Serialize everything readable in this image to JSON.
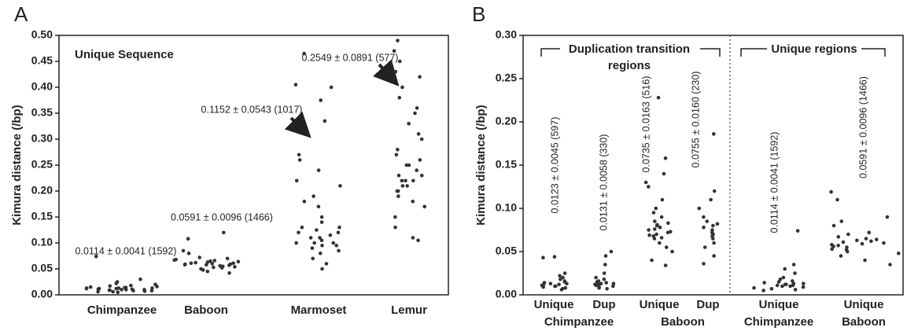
{
  "chart_data": [
    {
      "type": "strip",
      "panel_label": "A",
      "title": "Unique Sequence",
      "y_label": "Kimura distance (/bp)",
      "ylim": [
        0,
        0.5
      ],
      "yticks": [
        {
          "value": 0,
          "label": "0.00"
        },
        {
          "value": 0.05,
          "label": "0.05"
        },
        {
          "value": 0.1,
          "label": "0.10"
        },
        {
          "value": 0.15,
          "label": "0.15"
        },
        {
          "value": 0.2,
          "label": "0.20"
        },
        {
          "value": 0.25,
          "label": "0.25"
        },
        {
          "value": 0.3,
          "label": "0.30"
        },
        {
          "value": 0.35,
          "label": "0.35"
        },
        {
          "value": 0.4,
          "label": "0.40"
        },
        {
          "value": 0.45,
          "label": "0.45"
        },
        {
          "value": 0.5,
          "label": "0.50"
        }
      ],
      "categories": [
        "Chimpanzee",
        "Baboon",
        "Marmoset",
        "Lemur"
      ],
      "color": "#333333",
      "values": [
        [
          0.012,
          0.008,
          0.015,
          0.01,
          0.006,
          0.013,
          0.018,
          0.011,
          0.009,
          0.014,
          0.02,
          0.007,
          0.012,
          0.016,
          0.01,
          0.005,
          0.013,
          0.025,
          0.011,
          0.009,
          0.03,
          0.014,
          0.008,
          0.012,
          0.074,
          0.017,
          0.01,
          0.013,
          0.006,
          0.022
        ],
        [
          0.059,
          0.052,
          0.065,
          0.048,
          0.061,
          0.07,
          0.055,
          0.058,
          0.063,
          0.045,
          0.067,
          0.06,
          0.053,
          0.072,
          0.057,
          0.062,
          0.05,
          0.08,
          0.064,
          0.056,
          0.059,
          0.042,
          0.068,
          0.066,
          0.054,
          0.108,
          0.12,
          0.085,
          0.061,
          0.058
        ],
        [
          0.1,
          0.12,
          0.09,
          0.11,
          0.13,
          0.08,
          0.15,
          0.105,
          0.095,
          0.14,
          0.07,
          0.12,
          0.1,
          0.18,
          0.115,
          0.06,
          0.21,
          0.125,
          0.085,
          0.24,
          0.11,
          0.17,
          0.26,
          0.27,
          0.1,
          0.095,
          0.05,
          0.13,
          0.375,
          0.4,
          0.405,
          0.335,
          0.22,
          0.19,
          0.465
        ],
        [
          0.22,
          0.25,
          0.21,
          0.3,
          0.18,
          0.23,
          0.35,
          0.2,
          0.26,
          0.15,
          0.4,
          0.24,
          0.22,
          0.28,
          0.13,
          0.45,
          0.33,
          0.21,
          0.19,
          0.47,
          0.49,
          0.11,
          0.105,
          0.38,
          0.23,
          0.27,
          0.17,
          0.43,
          0.31,
          0.22,
          0.36,
          0.42,
          0.25,
          0.2
        ]
      ],
      "annotations": [
        "0.0114 ± 0.0041 (1592)",
        "0.0591 ± 0.0096 (1466)",
        "0.1152 ± 0.0543 (1017)",
        "0.2549 ± 0.0891 (577)"
      ]
    },
    {
      "type": "strip",
      "panel_label": "B",
      "y_label": "Kimura distance (/bp)",
      "ylim": [
        0,
        0.3
      ],
      "yticks": [
        {
          "value": 0,
          "label": "0.00"
        },
        {
          "value": 0.05,
          "label": "0.05"
        },
        {
          "value": 0.1,
          "label": "0.10"
        },
        {
          "value": 0.15,
          "label": "0.15"
        },
        {
          "value": 0.2,
          "label": "0.20"
        },
        {
          "value": 0.25,
          "label": "0.25"
        },
        {
          "value": 0.3,
          "label": "0.30"
        }
      ],
      "categories": [
        "Unique",
        "Dup",
        "Unique",
        "Dup",
        "Unique",
        "Unique"
      ],
      "groups": [
        "Chimpanzee",
        "Baboon",
        "Chimpanzee",
        "Baboon"
      ],
      "brackets": [
        "Duplication transition regions",
        "Unique regions"
      ],
      "color": "#333333",
      "values": [
        [
          0.012,
          0.009,
          0.015,
          0.01,
          0.006,
          0.013,
          0.018,
          0.011,
          0.02,
          0.008,
          0.014,
          0.025,
          0.043,
          0.044,
          0.016,
          0.01,
          0.012,
          0.007,
          0.022,
          0.013
        ],
        [
          0.013,
          0.01,
          0.016,
          0.008,
          0.012,
          0.02,
          0.045,
          0.05,
          0.035,
          0.011,
          0.014,
          0.009,
          0.018,
          0.015,
          0.012,
          0.007,
          0.025,
          0.013
        ],
        [
          0.073,
          0.068,
          0.08,
          0.06,
          0.075,
          0.09,
          0.065,
          0.078,
          0.07,
          0.085,
          0.055,
          0.095,
          0.072,
          0.083,
          0.05,
          0.1,
          0.076,
          0.069,
          0.04,
          0.034,
          0.125,
          0.13,
          0.14,
          0.158,
          0.228,
          0.11,
          0.081,
          0.066
        ],
        [
          0.075,
          0.07,
          0.082,
          0.06,
          0.078,
          0.09,
          0.065,
          0.085,
          0.072,
          0.1,
          0.055,
          0.12,
          0.11,
          0.045,
          0.036,
          0.186,
          0.08,
          0.068
        ],
        [
          0.011,
          0.008,
          0.014,
          0.01,
          0.006,
          0.013,
          0.018,
          0.012,
          0.009,
          0.02,
          0.015,
          0.007,
          0.025,
          0.03,
          0.035,
          0.074,
          0.011,
          0.013,
          0.016,
          0.01,
          0.005,
          0.012
        ],
        [
          0.059,
          0.052,
          0.065,
          0.048,
          0.061,
          0.07,
          0.055,
          0.058,
          0.063,
          0.045,
          0.067,
          0.06,
          0.053,
          0.072,
          0.057,
          0.062,
          0.05,
          0.08,
          0.085,
          0.09,
          0.04,
          0.035,
          0.11,
          0.119,
          0.064,
          0.056
        ]
      ],
      "annotations": [
        "0.0123 ± 0.0045 (597)",
        "0.0131 ± 0.0058 (330)",
        "0.0735 ± 0.0163 (516)",
        "0.0755 ± 0.0160 (230)",
        "0.0114 ± 0.0041 (1592)",
        "0.0591 ± 0.0096 (1466)"
      ]
    }
  ]
}
